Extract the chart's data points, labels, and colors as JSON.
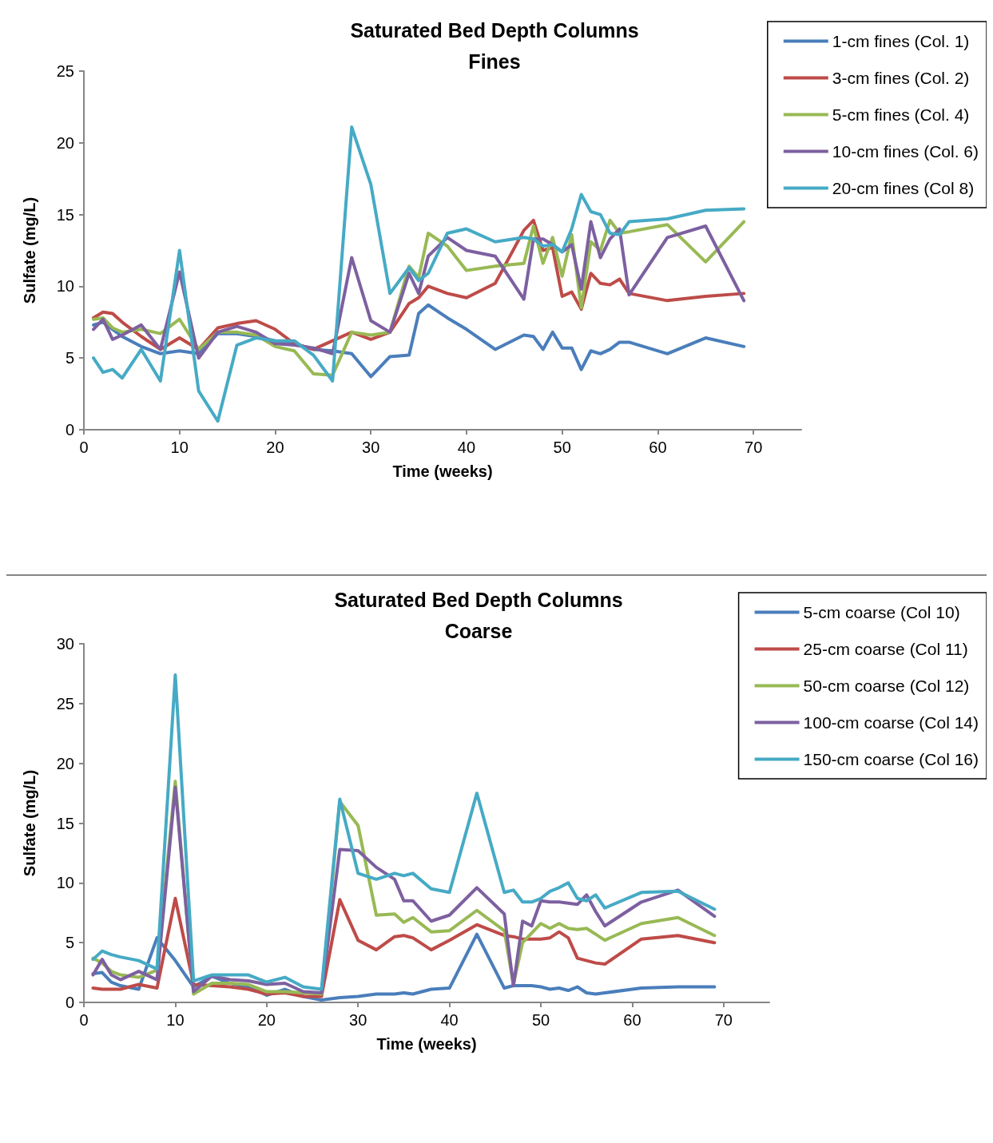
{
  "chart_data": [
    {
      "type": "line",
      "title": "Saturated Bed Depth Columns",
      "subtitle": "Fines",
      "xlabel": "Time (weeks)",
      "ylabel": "Sulfate (mg/L)",
      "x": [
        1,
        2,
        3,
        4,
        6,
        8,
        10,
        12,
        14,
        16,
        18,
        20,
        22,
        24,
        26,
        28,
        30,
        32,
        34,
        35,
        36,
        38,
        40,
        43,
        46,
        47,
        48,
        49,
        50,
        51,
        52,
        53,
        54,
        55,
        56,
        57,
        61,
        65,
        69
      ],
      "xlim": [
        0,
        75
      ],
      "xticks": [
        0,
        10,
        20,
        30,
        40,
        50,
        60,
        70
      ],
      "ylim": [
        0,
        25
      ],
      "yticks": [
        0,
        5,
        10,
        15,
        20,
        25
      ],
      "grid": false,
      "legend": "top right",
      "marker": "none",
      "line_style": "solid",
      "series": [
        {
          "name": "1-cm fines (Col. 1)",
          "color": "#4a7ebb",
          "values": [
            7.3,
            7.5,
            7.0,
            6.5,
            5.8,
            5.3,
            5.5,
            5.3,
            6.7,
            6.7,
            6.5,
            6.2,
            6.0,
            5.6,
            5.5,
            5.3,
            3.7,
            5.1,
            5.2,
            8.1,
            8.7,
            7.8,
            7.0,
            5.6,
            6.6,
            6.5,
            5.6,
            6.8,
            5.7,
            5.7,
            4.2,
            5.5,
            5.3,
            5.6,
            6.1,
            6.1,
            5.3,
            6.4,
            5.8
          ]
        },
        {
          "name": "3-cm fines (Col. 2)",
          "color": "#be4b48",
          "values": [
            7.8,
            8.2,
            8.1,
            7.5,
            6.5,
            5.6,
            6.4,
            5.6,
            7.1,
            7.4,
            7.6,
            7.0,
            6.0,
            5.6,
            6.2,
            6.8,
            6.3,
            6.8,
            8.8,
            9.2,
            10.0,
            9.5,
            9.2,
            10.2,
            13.9,
            14.6,
            12.5,
            12.7,
            9.3,
            9.6,
            8.4,
            10.9,
            10.2,
            10.1,
            10.5,
            9.5,
            9.0,
            9.3,
            9.5
          ]
        },
        {
          "name": "5-cm fines (Col. 4)",
          "color": "#98b954",
          "values": [
            7.7,
            7.8,
            7.1,
            6.8,
            7.0,
            6.7,
            7.7,
            5.6,
            6.8,
            6.8,
            6.6,
            5.8,
            5.5,
            3.9,
            3.8,
            6.8,
            6.6,
            6.8,
            11.4,
            10.6,
            13.7,
            12.8,
            11.1,
            11.4,
            11.6,
            14.2,
            11.6,
            13.4,
            10.7,
            13.6,
            8.5,
            13.1,
            12.5,
            14.6,
            13.7,
            13.8,
            14.3,
            11.7,
            14.5
          ]
        },
        {
          "name": "10-cm fines (Col. 6)",
          "color": "#7d60a0",
          "values": [
            7.0,
            7.7,
            6.3,
            6.6,
            7.3,
            5.6,
            11.0,
            5.0,
            6.8,
            7.2,
            6.8,
            6.0,
            5.9,
            5.7,
            5.3,
            12.0,
            7.6,
            6.8,
            10.9,
            9.5,
            12.1,
            13.4,
            12.5,
            12.1,
            9.1,
            13.3,
            13.3,
            12.9,
            12.4,
            12.9,
            9.8,
            14.5,
            12.0,
            13.3,
            14.0,
            9.4,
            13.4,
            14.2,
            9.0
          ]
        },
        {
          "name": "20-cm fines (Col 8)",
          "color": "#46aac5",
          "values": [
            5.0,
            4.0,
            4.2,
            3.6,
            5.6,
            3.4,
            12.5,
            2.7,
            0.6,
            5.9,
            6.4,
            6.2,
            6.2,
            5.2,
            3.4,
            21.1,
            17.1,
            9.5,
            11.3,
            10.4,
            10.9,
            13.7,
            14.0,
            13.1,
            13.4,
            13.3,
            12.8,
            12.9,
            12.4,
            14.0,
            16.4,
            15.2,
            15.0,
            13.7,
            13.6,
            14.5,
            14.7,
            15.3,
            15.4
          ]
        }
      ]
    },
    {
      "type": "line",
      "title": "Saturated Bed Depth Columns",
      "subtitle": "Coarse",
      "xlabel": "Time (weeks)",
      "ylabel": "Sulfate (mg/L)",
      "x": [
        1,
        2,
        3,
        4,
        6,
        8,
        10,
        12,
        14,
        16,
        18,
        20,
        22,
        24,
        26,
        28,
        30,
        32,
        34,
        35,
        36,
        38,
        40,
        43,
        46,
        47,
        48,
        49,
        50,
        51,
        52,
        53,
        54,
        55,
        56,
        57,
        61,
        65,
        69
      ],
      "xlim": [
        0,
        75
      ],
      "xticks": [
        0,
        10,
        20,
        30,
        40,
        50,
        60,
        70
      ],
      "ylim": [
        0,
        30
      ],
      "yticks": [
        0,
        5,
        10,
        15,
        20,
        25,
        30
      ],
      "grid": false,
      "legend": "top right",
      "marker": "none",
      "line_style": "solid",
      "series": [
        {
          "name": "5-cm coarse (Col 10)",
          "color": "#4a7ebb",
          "values": [
            2.4,
            2.5,
            1.7,
            1.4,
            1.1,
            5.4,
            3.5,
            1.3,
            2.2,
            1.6,
            1.3,
            0.6,
            1.1,
            0.5,
            0.2,
            0.4,
            0.5,
            0.7,
            0.7,
            0.8,
            0.7,
            1.1,
            1.2,
            5.7,
            1.2,
            1.4,
            1.4,
            1.4,
            1.3,
            1.1,
            1.2,
            1.0,
            1.3,
            0.8,
            0.7,
            0.8,
            1.2,
            1.3,
            1.3
          ]
        },
        {
          "name": "25-cm coarse (Col 11)",
          "color": "#be4b48",
          "values": [
            1.2,
            1.1,
            1.1,
            1.1,
            1.5,
            1.2,
            8.7,
            1.5,
            1.4,
            1.3,
            1.1,
            0.7,
            0.8,
            0.5,
            0.5,
            8.6,
            5.2,
            4.4,
            5.5,
            5.6,
            5.4,
            4.4,
            5.2,
            6.5,
            5.6,
            5.5,
            5.3,
            5.3,
            5.3,
            5.4,
            5.9,
            5.4,
            3.7,
            3.5,
            3.3,
            3.2,
            5.3,
            5.6,
            5.0
          ]
        },
        {
          "name": "50-cm coarse (Col 12)",
          "color": "#98b954",
          "values": [
            3.7,
            3.3,
            2.6,
            2.3,
            2.1,
            2.7,
            18.5,
            0.7,
            1.6,
            1.6,
            1.5,
            0.9,
            0.9,
            0.8,
            0.7,
            16.8,
            14.8,
            7.3,
            7.4,
            6.7,
            7.1,
            5.9,
            6.0,
            7.7,
            6.0,
            1.5,
            5.0,
            5.8,
            6.6,
            6.2,
            6.6,
            6.2,
            6.1,
            6.2,
            5.7,
            5.2,
            6.6,
            7.1,
            5.6
          ]
        },
        {
          "name": "100-cm coarse (Col 14)",
          "color": "#7d60a0",
          "values": [
            2.3,
            3.6,
            2.3,
            1.9,
            2.6,
            1.9,
            18.0,
            0.9,
            2.2,
            1.9,
            1.8,
            1.5,
            1.6,
            0.9,
            0.8,
            12.8,
            12.7,
            11.3,
            10.3,
            8.5,
            8.5,
            6.8,
            7.3,
            9.6,
            7.4,
            1.4,
            6.8,
            6.4,
            8.5,
            8.4,
            8.4,
            8.3,
            8.2,
            9.0,
            7.6,
            6.4,
            8.4,
            9.4,
            7.2
          ]
        },
        {
          "name": "150-cm coarse (Col 16)",
          "color": "#46aac5",
          "values": [
            3.6,
            4.3,
            4.0,
            3.8,
            3.5,
            2.8,
            27.4,
            1.8,
            2.3,
            2.3,
            2.3,
            1.7,
            2.1,
            1.3,
            1.1,
            17.0,
            10.8,
            10.3,
            10.8,
            10.6,
            10.8,
            9.5,
            9.2,
            17.5,
            9.2,
            9.4,
            8.4,
            8.4,
            8.7,
            9.3,
            9.6,
            10.0,
            8.7,
            8.5,
            9.0,
            7.9,
            9.2,
            9.3,
            7.8
          ]
        }
      ]
    }
  ]
}
